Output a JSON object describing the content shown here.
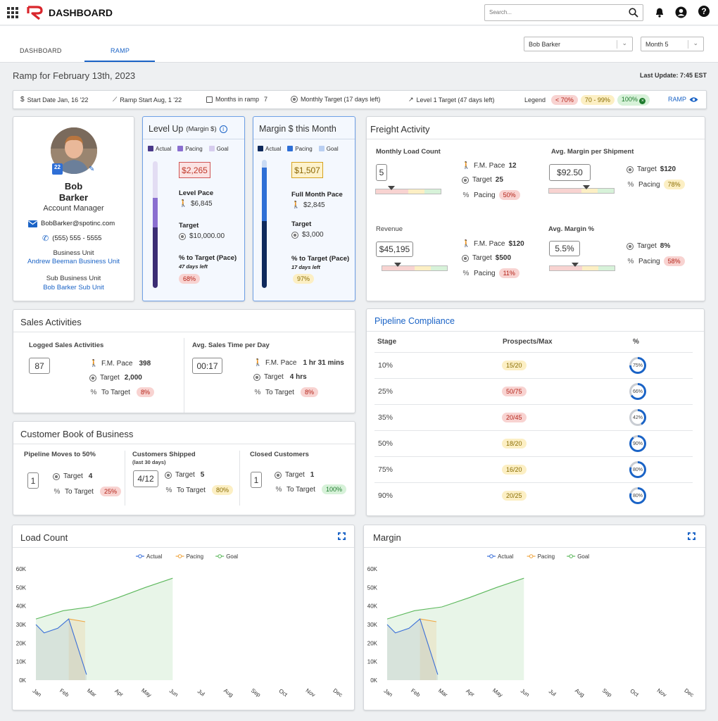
{
  "app": {
    "title": "DASHBOARD",
    "search_placeholder": "Search..."
  },
  "tabs": [
    {
      "label": "DASHBOARD"
    },
    {
      "label": "RAMP"
    }
  ],
  "filters": {
    "person": "Bob Barker",
    "month": "Month 5"
  },
  "page": {
    "title": "Ramp for February 13th, 2023",
    "last_update": "Last Update: 7:45 EST"
  },
  "infobar": {
    "start_date": "Start Date Jan, 16 '22",
    "ramp_start": "Ramp Start Aug, 1 '22",
    "months_label": "Months in ramp",
    "months_value": "7",
    "monthly_target": "Monthly Target (17 days left)",
    "level1_target": "Level 1 Target (47 days left)",
    "legend_label": "Legend",
    "legend_red": "< 70%",
    "legend_yellow": "70 - 99%",
    "legend_green": "100%",
    "ramp_link": "RAMP"
  },
  "profile": {
    "first_name": "Bob",
    "last_name": "Barker",
    "role": "Account Manager",
    "email": "BobBarker@spotinc.com",
    "phone": "(555) 555 - 5555",
    "badge": "22",
    "bu_label": "Business Unit",
    "bu_value": "Andrew Beeman Business Unit",
    "sbu_label": "Sub Business Unit",
    "sbu_value": "Bob Barker Sub Unit"
  },
  "levelup": {
    "title": "Level Up",
    "subtitle": "(Margin $)",
    "legend": [
      "Actual",
      "Pacing",
      "Goal"
    ],
    "value": "$2,265",
    "pace_label": "Level Pace",
    "pace_value": "$6,845",
    "target_label": "Target",
    "target_value": "$10,000.00",
    "pct_label": "% to Target (Pace)",
    "days_left": "47 days left",
    "pct_value": "68%",
    "fill_actual": 0.48,
    "fill_pacing": 0.23
  },
  "margin_month": {
    "title": "Margin $ this Month",
    "legend": [
      "Actual",
      "Pacing",
      "Goal"
    ],
    "value": "$1,507",
    "pace_label": "Full Month Pace",
    "pace_value": "$2,845",
    "target_label": "Target",
    "target_value": "$3,000",
    "pct_label": "% to Target (Pace)",
    "days_left": "17 days left",
    "pct_value": "97%",
    "fill_actual": 0.52,
    "fill_pacing": 0.42
  },
  "freight": {
    "title": "Freight Activity",
    "load_count": {
      "label": "Monthly Load Count",
      "value": "5",
      "fm_label": "F.M. Pace",
      "fm_value": "12",
      "target_label": "Target",
      "target_value": "25",
      "pacing_label": "Pacing",
      "pacing_value": "50%"
    },
    "avg_margin_ship": {
      "label": "Avg. Margin per Shipment",
      "value": "$92.50",
      "target_label": "Target",
      "target_value": "$120",
      "pacing_label": "Pacing",
      "pacing_value": "78%"
    },
    "revenue": {
      "label": "Revenue",
      "value": "$45,195",
      "fm_label": "F.M. Pace",
      "fm_value": "$120",
      "target_label": "Target",
      "target_value": "$500",
      "pacing_label": "Pacing",
      "pacing_value": "11%"
    },
    "avg_margin_pct": {
      "label": "Avg. Margin %",
      "value": "5.5%",
      "target_label": "Target",
      "target_value": "8%",
      "pacing_label": "Pacing",
      "pacing_value": "58%"
    }
  },
  "sales": {
    "title": "Sales Activities",
    "logged": {
      "label": "Logged Sales Activities",
      "value": "87",
      "fm_label": "F.M. Pace",
      "fm_value": "398",
      "target_label": "Target",
      "target_value": "2,000",
      "pct_label": "To Target",
      "pct_value": "8%"
    },
    "time": {
      "label": "Avg. Sales Time per Day",
      "value": "00:17",
      "fm_label": "F.M. Pace",
      "fm_value": "1 hr 31 mins",
      "target_label": "Target",
      "target_value": "4 hrs",
      "pct_label": "To Target",
      "pct_value": "8%"
    }
  },
  "book": {
    "title": "Customer Book of Business",
    "pipeline": {
      "label": "Pipeline Moves to 50%",
      "value": "1",
      "target_label": "Target",
      "target_value": "4",
      "pct_label": "To Target",
      "pct_value": "25%"
    },
    "shipped": {
      "label": "Customers Shipped",
      "sublabel": "(last 30 days)",
      "value": "4/12",
      "target_label": "Target",
      "target_value": "5",
      "pct_label": "To Target",
      "pct_value": "80%"
    },
    "closed": {
      "label": "Closed Customers",
      "value": "1",
      "target_label": "Target",
      "target_value": "1",
      "pct_label": "To Target",
      "pct_value": "100%"
    }
  },
  "pipeline": {
    "title": "Pipeline Compliance",
    "headers": [
      "Stage",
      "Prospects/Max",
      "%"
    ],
    "rows": [
      {
        "stage": "10%",
        "prospects": "15/20",
        "pct": "75%",
        "level": 0.75,
        "status": "yellow"
      },
      {
        "stage": "25%",
        "prospects": "50/75",
        "pct": "66%",
        "level": 0.66,
        "status": "red"
      },
      {
        "stage": "35%",
        "prospects": "20/45",
        "pct": "42%",
        "level": 0.42,
        "status": "red"
      },
      {
        "stage": "50%",
        "prospects": "18/20",
        "pct": "90%",
        "level": 0.9,
        "status": "yellow"
      },
      {
        "stage": "75%",
        "prospects": "16/20",
        "pct": "80%",
        "level": 0.8,
        "status": "yellow"
      },
      {
        "stage": "90%",
        "prospects": "20/25",
        "pct": "80%",
        "level": 0.8,
        "status": "yellow"
      }
    ]
  },
  "colors": {
    "actual": "#3a6fd8",
    "pacing": "#f0a640",
    "goal": "#5cb85c",
    "brand": "#d9262c",
    "link": "#1a63c6"
  },
  "chart_data": [
    {
      "type": "line",
      "title": "Load Count",
      "categories": [
        "Jan",
        "Feb",
        "Mar",
        "Apr",
        "May",
        "Jun",
        "Jul",
        "Aug",
        "Sep",
        "Oct",
        "Nov",
        "Dec"
      ],
      "ylim": [
        0,
        60000
      ],
      "yticks": [
        "0K",
        "10K",
        "20K",
        "30K",
        "40K",
        "50K",
        "60K"
      ],
      "legend": "top-center",
      "series": [
        {
          "name": "Actual",
          "points": [
            [
              0,
              30000
            ],
            [
              0.3,
              25500
            ],
            [
              0.8,
              28000
            ],
            [
              1.2,
              33000
            ],
            [
              1.85,
              3000
            ]
          ]
        },
        {
          "name": "Pacing",
          "points": [
            [
              1.2,
              33000
            ],
            [
              1.8,
              31500
            ]
          ]
        },
        {
          "name": "Goal",
          "points": [
            [
              0,
              33000
            ],
            [
              1,
              37500
            ],
            [
              2,
              39500
            ],
            [
              3,
              44500
            ],
            [
              4,
              50000
            ],
            [
              5,
              55000
            ]
          ]
        }
      ]
    },
    {
      "type": "line",
      "title": "Margin",
      "categories": [
        "Jan",
        "Feb",
        "Mar",
        "Apr",
        "May",
        "Jun",
        "Jul",
        "Aug",
        "Sep",
        "Oct",
        "Nov",
        "Dec"
      ],
      "ylim": [
        0,
        60000
      ],
      "yticks": [
        "0K",
        "10K",
        "20K",
        "30K",
        "40K",
        "50K",
        "60K"
      ],
      "legend": "top-center",
      "series": [
        {
          "name": "Actual",
          "points": [
            [
              0,
              30000
            ],
            [
              0.3,
              25500
            ],
            [
              0.8,
              28000
            ],
            [
              1.2,
              33000
            ],
            [
              1.85,
              3000
            ]
          ]
        },
        {
          "name": "Pacing",
          "points": [
            [
              1.2,
              33000
            ],
            [
              1.8,
              31500
            ]
          ]
        },
        {
          "name": "Goal",
          "points": [
            [
              0,
              33000
            ],
            [
              1,
              37500
            ],
            [
              2,
              39500
            ],
            [
              3,
              44500
            ],
            [
              4,
              50000
            ],
            [
              5,
              55000
            ]
          ]
        }
      ]
    }
  ]
}
